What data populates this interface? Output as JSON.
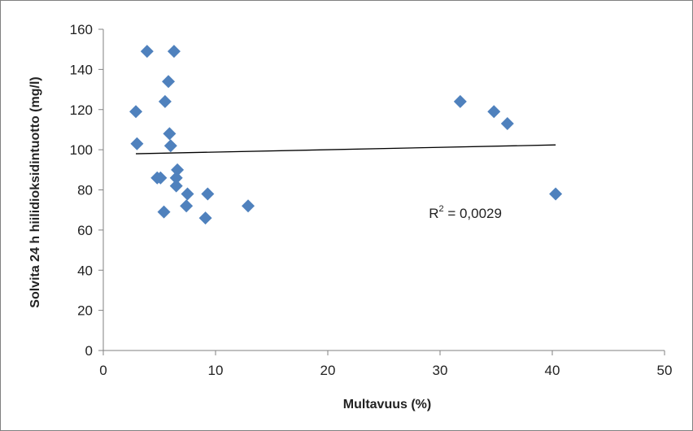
{
  "chart_data": {
    "type": "scatter",
    "xlabel": "Multavuus (%)",
    "ylabel": "Solvita 24 h hiilidioksidintuotto (mg/l)",
    "xlim": [
      0,
      50
    ],
    "ylim": [
      0,
      160
    ],
    "x_ticks": [
      "0",
      "10",
      "20",
      "30",
      "40",
      "50"
    ],
    "y_ticks": [
      "0",
      "20",
      "40",
      "60",
      "80",
      "100",
      "120",
      "140",
      "160"
    ],
    "x_tick_values": [
      0,
      10,
      20,
      30,
      40,
      50
    ],
    "y_tick_values": [
      0,
      20,
      40,
      60,
      80,
      100,
      120,
      140,
      160
    ],
    "grid": false,
    "marker": "diamond",
    "marker_color": "#4F81BD",
    "points": [
      {
        "x": 3.9,
        "y": 149
      },
      {
        "x": 6.3,
        "y": 149
      },
      {
        "x": 5.8,
        "y": 134
      },
      {
        "x": 5.5,
        "y": 124
      },
      {
        "x": 2.9,
        "y": 119
      },
      {
        "x": 5.9,
        "y": 108
      },
      {
        "x": 3.0,
        "y": 103
      },
      {
        "x": 6.0,
        "y": 102
      },
      {
        "x": 6.6,
        "y": 90
      },
      {
        "x": 4.8,
        "y": 86
      },
      {
        "x": 5.1,
        "y": 86
      },
      {
        "x": 6.5,
        "y": 86
      },
      {
        "x": 6.5,
        "y": 82
      },
      {
        "x": 7.5,
        "y": 78
      },
      {
        "x": 9.3,
        "y": 78
      },
      {
        "x": 7.4,
        "y": 72
      },
      {
        "x": 12.9,
        "y": 72
      },
      {
        "x": 5.4,
        "y": 69
      },
      {
        "x": 9.1,
        "y": 66
      },
      {
        "x": 31.8,
        "y": 124
      },
      {
        "x": 34.8,
        "y": 119
      },
      {
        "x": 36.0,
        "y": 113
      },
      {
        "x": 40.3,
        "y": 78
      }
    ],
    "trendline": {
      "type": "linear",
      "x": [
        2.9,
        40.3
      ],
      "y": [
        98.0,
        102.4
      ],
      "color": "#000000"
    },
    "annotation": {
      "text_base": "R",
      "text_sup": "2",
      "text_rest": " = 0,0029",
      "at": [
        29,
        66
      ]
    }
  }
}
